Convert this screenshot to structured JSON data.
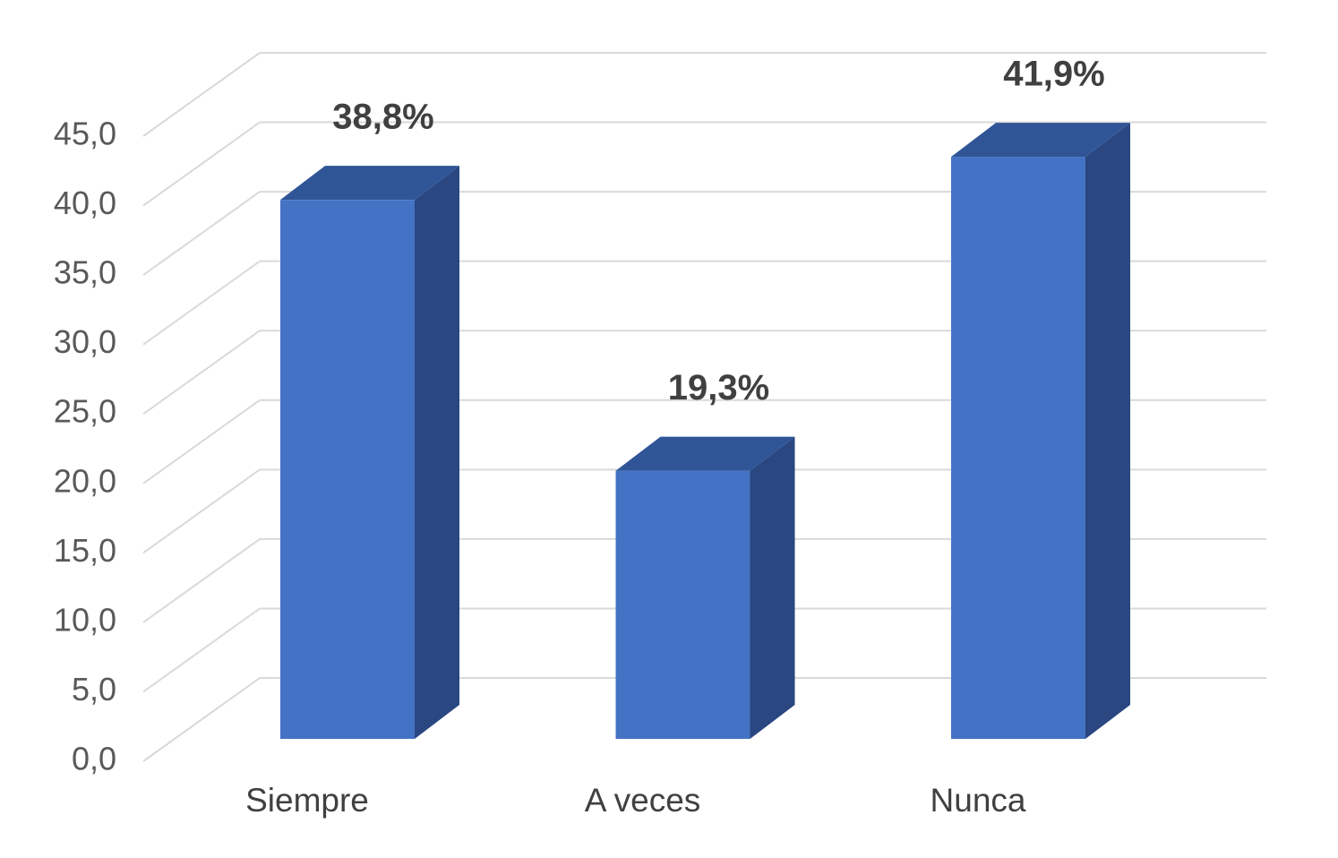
{
  "chart_data": {
    "type": "bar3d",
    "categories": [
      "Siempre",
      "A veces",
      "Nunca"
    ],
    "values": [
      38.8,
      19.3,
      41.9
    ],
    "value_labels": [
      "38,8%",
      "19,3%",
      "41,9%"
    ],
    "color": "#4472c4",
    "ylim": [
      0,
      45
    ],
    "yticks": [
      {
        "value": 0,
        "label": "0,0"
      },
      {
        "value": 5,
        "label": "5,0"
      },
      {
        "value": 10,
        "label": "10,0"
      },
      {
        "value": 15,
        "label": "15,0"
      },
      {
        "value": 20,
        "label": "20,0"
      },
      {
        "value": 25,
        "label": "25,0"
      },
      {
        "value": 30,
        "label": "30,0"
      },
      {
        "value": 35,
        "label": "35,0"
      },
      {
        "value": 40,
        "label": "40,0"
      },
      {
        "value": 45,
        "label": "45,0"
      }
    ],
    "grid": true
  }
}
